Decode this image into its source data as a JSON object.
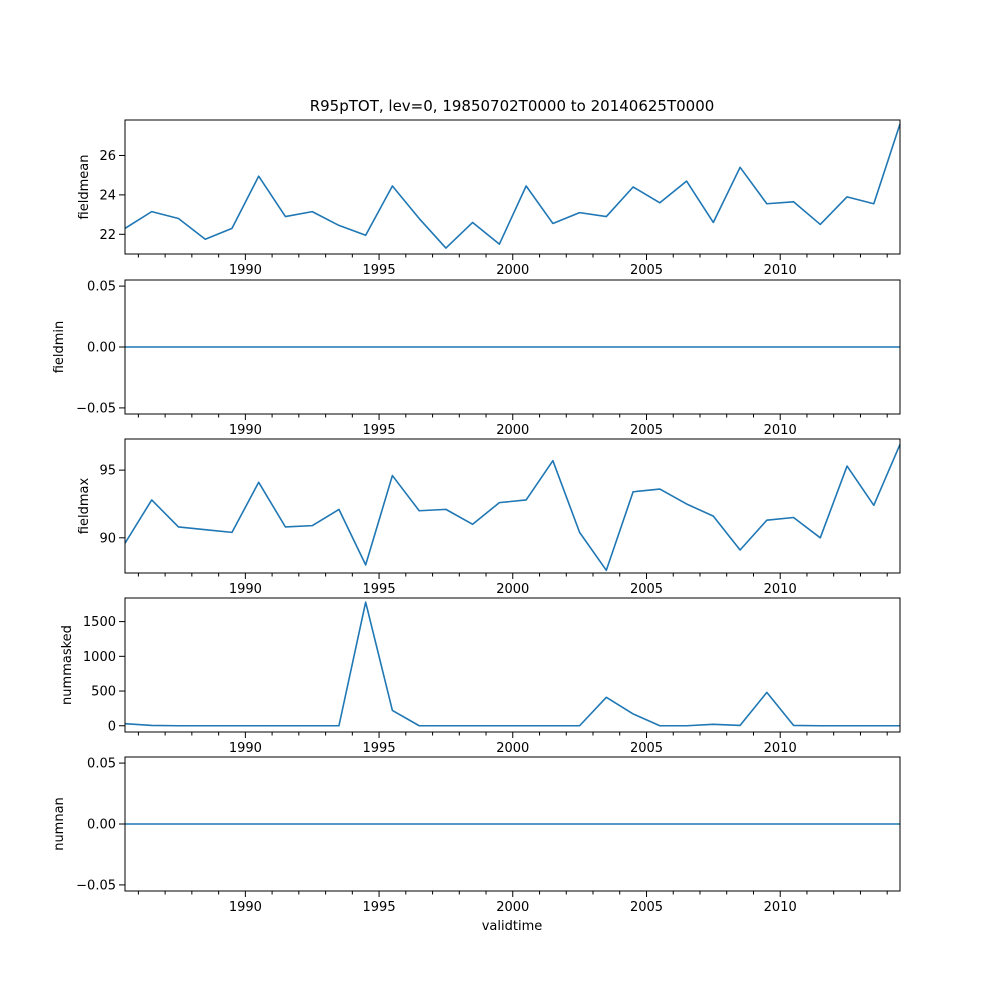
{
  "chart_data": {
    "type": "line",
    "title": "R95pTOT, lev=0, 19850702T0000 to 20140625T0000",
    "xlabel": "validtime",
    "xlim": [
      "1985-07-02",
      "2014-06-25"
    ],
    "x_tick_labels": [
      "1990",
      "1995",
      "2000",
      "2005",
      "2010"
    ],
    "x": [
      "1985-07-02",
      "1986-07-02",
      "1987-07-02",
      "1988-07-02",
      "1989-07-02",
      "1990-07-02",
      "1991-07-02",
      "1992-07-02",
      "1993-07-02",
      "1994-07-02",
      "1995-07-02",
      "1996-07-02",
      "1997-07-02",
      "1998-07-02",
      "1999-07-02",
      "2000-07-02",
      "2001-07-02",
      "2002-07-02",
      "2003-07-02",
      "2004-07-02",
      "2005-07-02",
      "2006-07-02",
      "2007-07-02",
      "2008-07-02",
      "2009-07-02",
      "2010-07-02",
      "2011-07-02",
      "2012-07-02",
      "2013-07-02",
      "2014-06-25"
    ],
    "panels": [
      {
        "ylabel": "fieldmean",
        "ylim": [
          21.0,
          27.8
        ],
        "y_ticks": [
          22,
          24,
          26
        ],
        "y_tick_labels": [
          "22",
          "24",
          "26"
        ],
        "values": [
          22.3,
          23.15,
          22.8,
          21.75,
          22.3,
          24.95,
          22.9,
          23.15,
          22.45,
          21.95,
          24.45,
          22.8,
          21.3,
          22.6,
          21.5,
          24.45,
          22.55,
          23.1,
          22.9,
          24.4,
          23.6,
          24.7,
          22.6,
          25.4,
          23.55,
          23.65,
          22.5,
          23.9,
          23.55,
          27.6
        ]
      },
      {
        "ylabel": "fieldmin",
        "ylim": [
          -0.055,
          0.055
        ],
        "y_ticks": [
          -0.05,
          0.0,
          0.05
        ],
        "y_tick_labels": [
          "−0.05",
          "0.00",
          "0.05"
        ],
        "values": [
          0,
          0,
          0,
          0,
          0,
          0,
          0,
          0,
          0,
          0,
          0,
          0,
          0,
          0,
          0,
          0,
          0,
          0,
          0,
          0,
          0,
          0,
          0,
          0,
          0,
          0,
          0,
          0,
          0,
          0
        ]
      },
      {
        "ylabel": "fieldmax",
        "ylim": [
          87.4,
          97.3
        ],
        "y_ticks": [
          90,
          95
        ],
        "y_tick_labels": [
          "90",
          "95"
        ],
        "values": [
          89.6,
          92.8,
          90.8,
          90.6,
          90.4,
          94.1,
          90.8,
          90.9,
          92.1,
          88.0,
          94.6,
          92.0,
          92.1,
          91.0,
          92.6,
          92.8,
          95.7,
          90.4,
          87.6,
          93.4,
          93.6,
          92.5,
          91.6,
          89.1,
          91.3,
          91.5,
          90.0,
          95.3,
          92.4,
          96.9
        ]
      },
      {
        "ylabel": "nummasked",
        "ylim": [
          -90,
          1840
        ],
        "y_ticks": [
          0,
          500,
          1000,
          1500
        ],
        "y_tick_labels": [
          "0",
          "500",
          "1000",
          "1500"
        ],
        "values": [
          30,
          5,
          0,
          0,
          0,
          0,
          0,
          0,
          0,
          1780,
          220,
          0,
          0,
          0,
          0,
          0,
          0,
          0,
          410,
          170,
          0,
          0,
          20,
          5,
          480,
          5,
          0,
          0,
          0,
          0
        ]
      },
      {
        "ylabel": "numnan",
        "ylim": [
          -0.055,
          0.055
        ],
        "y_ticks": [
          -0.05,
          0.0,
          0.05
        ],
        "y_tick_labels": [
          "−0.05",
          "0.00",
          "0.05"
        ],
        "values": [
          0,
          0,
          0,
          0,
          0,
          0,
          0,
          0,
          0,
          0,
          0,
          0,
          0,
          0,
          0,
          0,
          0,
          0,
          0,
          0,
          0,
          0,
          0,
          0,
          0,
          0,
          0,
          0,
          0,
          0
        ]
      }
    ],
    "colors": {
      "line": "#1f77b4"
    }
  }
}
